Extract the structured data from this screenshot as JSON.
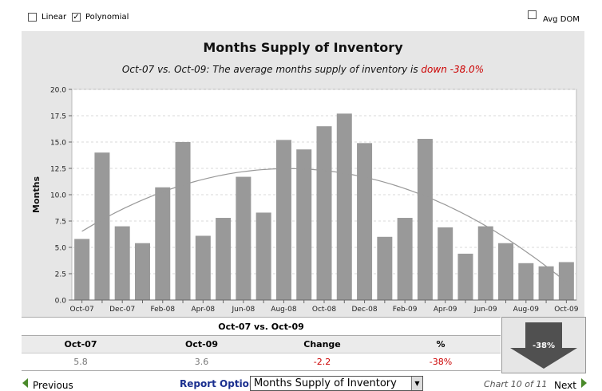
{
  "options": {
    "linear": {
      "label": "Linear",
      "checked": false
    },
    "polynomial": {
      "label": "Polynomial",
      "checked": true
    },
    "avg_dom": {
      "label": "Avg DOM",
      "checked": false
    }
  },
  "header": {
    "title": "Months Supply of Inventory",
    "subtitle_prefix": "Oct-07 vs. Oct-09: The average months supply of inventory is",
    "subtitle_change": "down -38.0%"
  },
  "chart_data": {
    "type": "bar",
    "title": "Months Supply of Inventory",
    "xlabel": "",
    "ylabel": "Months",
    "ylim": [
      0,
      20
    ],
    "yticks": [
      "0.0",
      "2.5",
      "5.0",
      "7.5",
      "10.0",
      "12.5",
      "15.0",
      "17.5",
      "20.0"
    ],
    "grid": true,
    "categories": [
      "Oct-07",
      "Nov-07",
      "Dec-07",
      "Jan-08",
      "Feb-08",
      "Mar-08",
      "Apr-08",
      "May-08",
      "Jun-08",
      "Jul-08",
      "Aug-08",
      "Sep-08",
      "Oct-08",
      "Nov-08",
      "Dec-08",
      "Jan-09",
      "Feb-09",
      "Mar-09",
      "Apr-09",
      "May-09",
      "Jun-09",
      "Jul-09",
      "Aug-09",
      "Sep-09",
      "Oct-09"
    ],
    "xtick_labels": [
      "Oct-07",
      "",
      "Dec-07",
      "",
      "Feb-08",
      "",
      "Apr-08",
      "",
      "Jun-08",
      "",
      "Aug-08",
      "",
      "Oct-08",
      "",
      "Dec-08",
      "",
      "Feb-09",
      "",
      "Apr-09",
      "",
      "Jun-09",
      "",
      "Aug-09",
      "",
      "Oct-09"
    ],
    "values": [
      5.8,
      14.0,
      7.0,
      5.4,
      10.7,
      15.0,
      6.1,
      7.8,
      11.7,
      8.3,
      15.2,
      14.3,
      16.5,
      17.7,
      14.9,
      6.0,
      7.8,
      15.3,
      6.9,
      4.4,
      7.0,
      5.4,
      3.5,
      3.2,
      3.6
    ],
    "trendline": {
      "type": "polynomial",
      "color": "#999999"
    },
    "bar_color": "#999999"
  },
  "summary": {
    "title": "Oct-07 vs. Oct-09",
    "headers": [
      "Oct-07",
      "Oct-09",
      "Change",
      "%"
    ],
    "values": [
      "5.8",
      "3.6",
      "-2.2",
      "-38%"
    ]
  },
  "badge": {
    "label": "-38%"
  },
  "footer": {
    "previous": "Previous",
    "report_options": "Report Options",
    "report_selected": "Months Supply of Inventory",
    "chart_count": "Chart 10 of 11",
    "next": "Next"
  }
}
